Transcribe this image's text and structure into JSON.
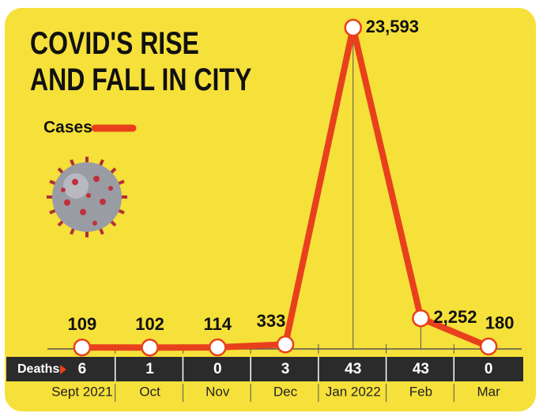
{
  "chart_data": {
    "type": "line",
    "title": "COVID'S RISE AND FALL IN CITY",
    "categories": [
      "Sept 2021",
      "Oct",
      "Nov",
      "Dec",
      "Jan 2022",
      "Feb",
      "Mar"
    ],
    "series": [
      {
        "name": "Cases",
        "color": "#e8401c",
        "values": [
          109,
          102,
          114,
          333,
          23593,
          2252,
          180
        ],
        "value_labels": [
          "109",
          "102",
          "114",
          "333",
          "23,593",
          "2,252",
          "180"
        ]
      }
    ],
    "deaths": {
      "label": "Deaths",
      "values": [
        6,
        1,
        0,
        3,
        43,
        43,
        0
      ]
    },
    "ylim": [
      0,
      24000
    ],
    "legend": "top-left"
  }
}
